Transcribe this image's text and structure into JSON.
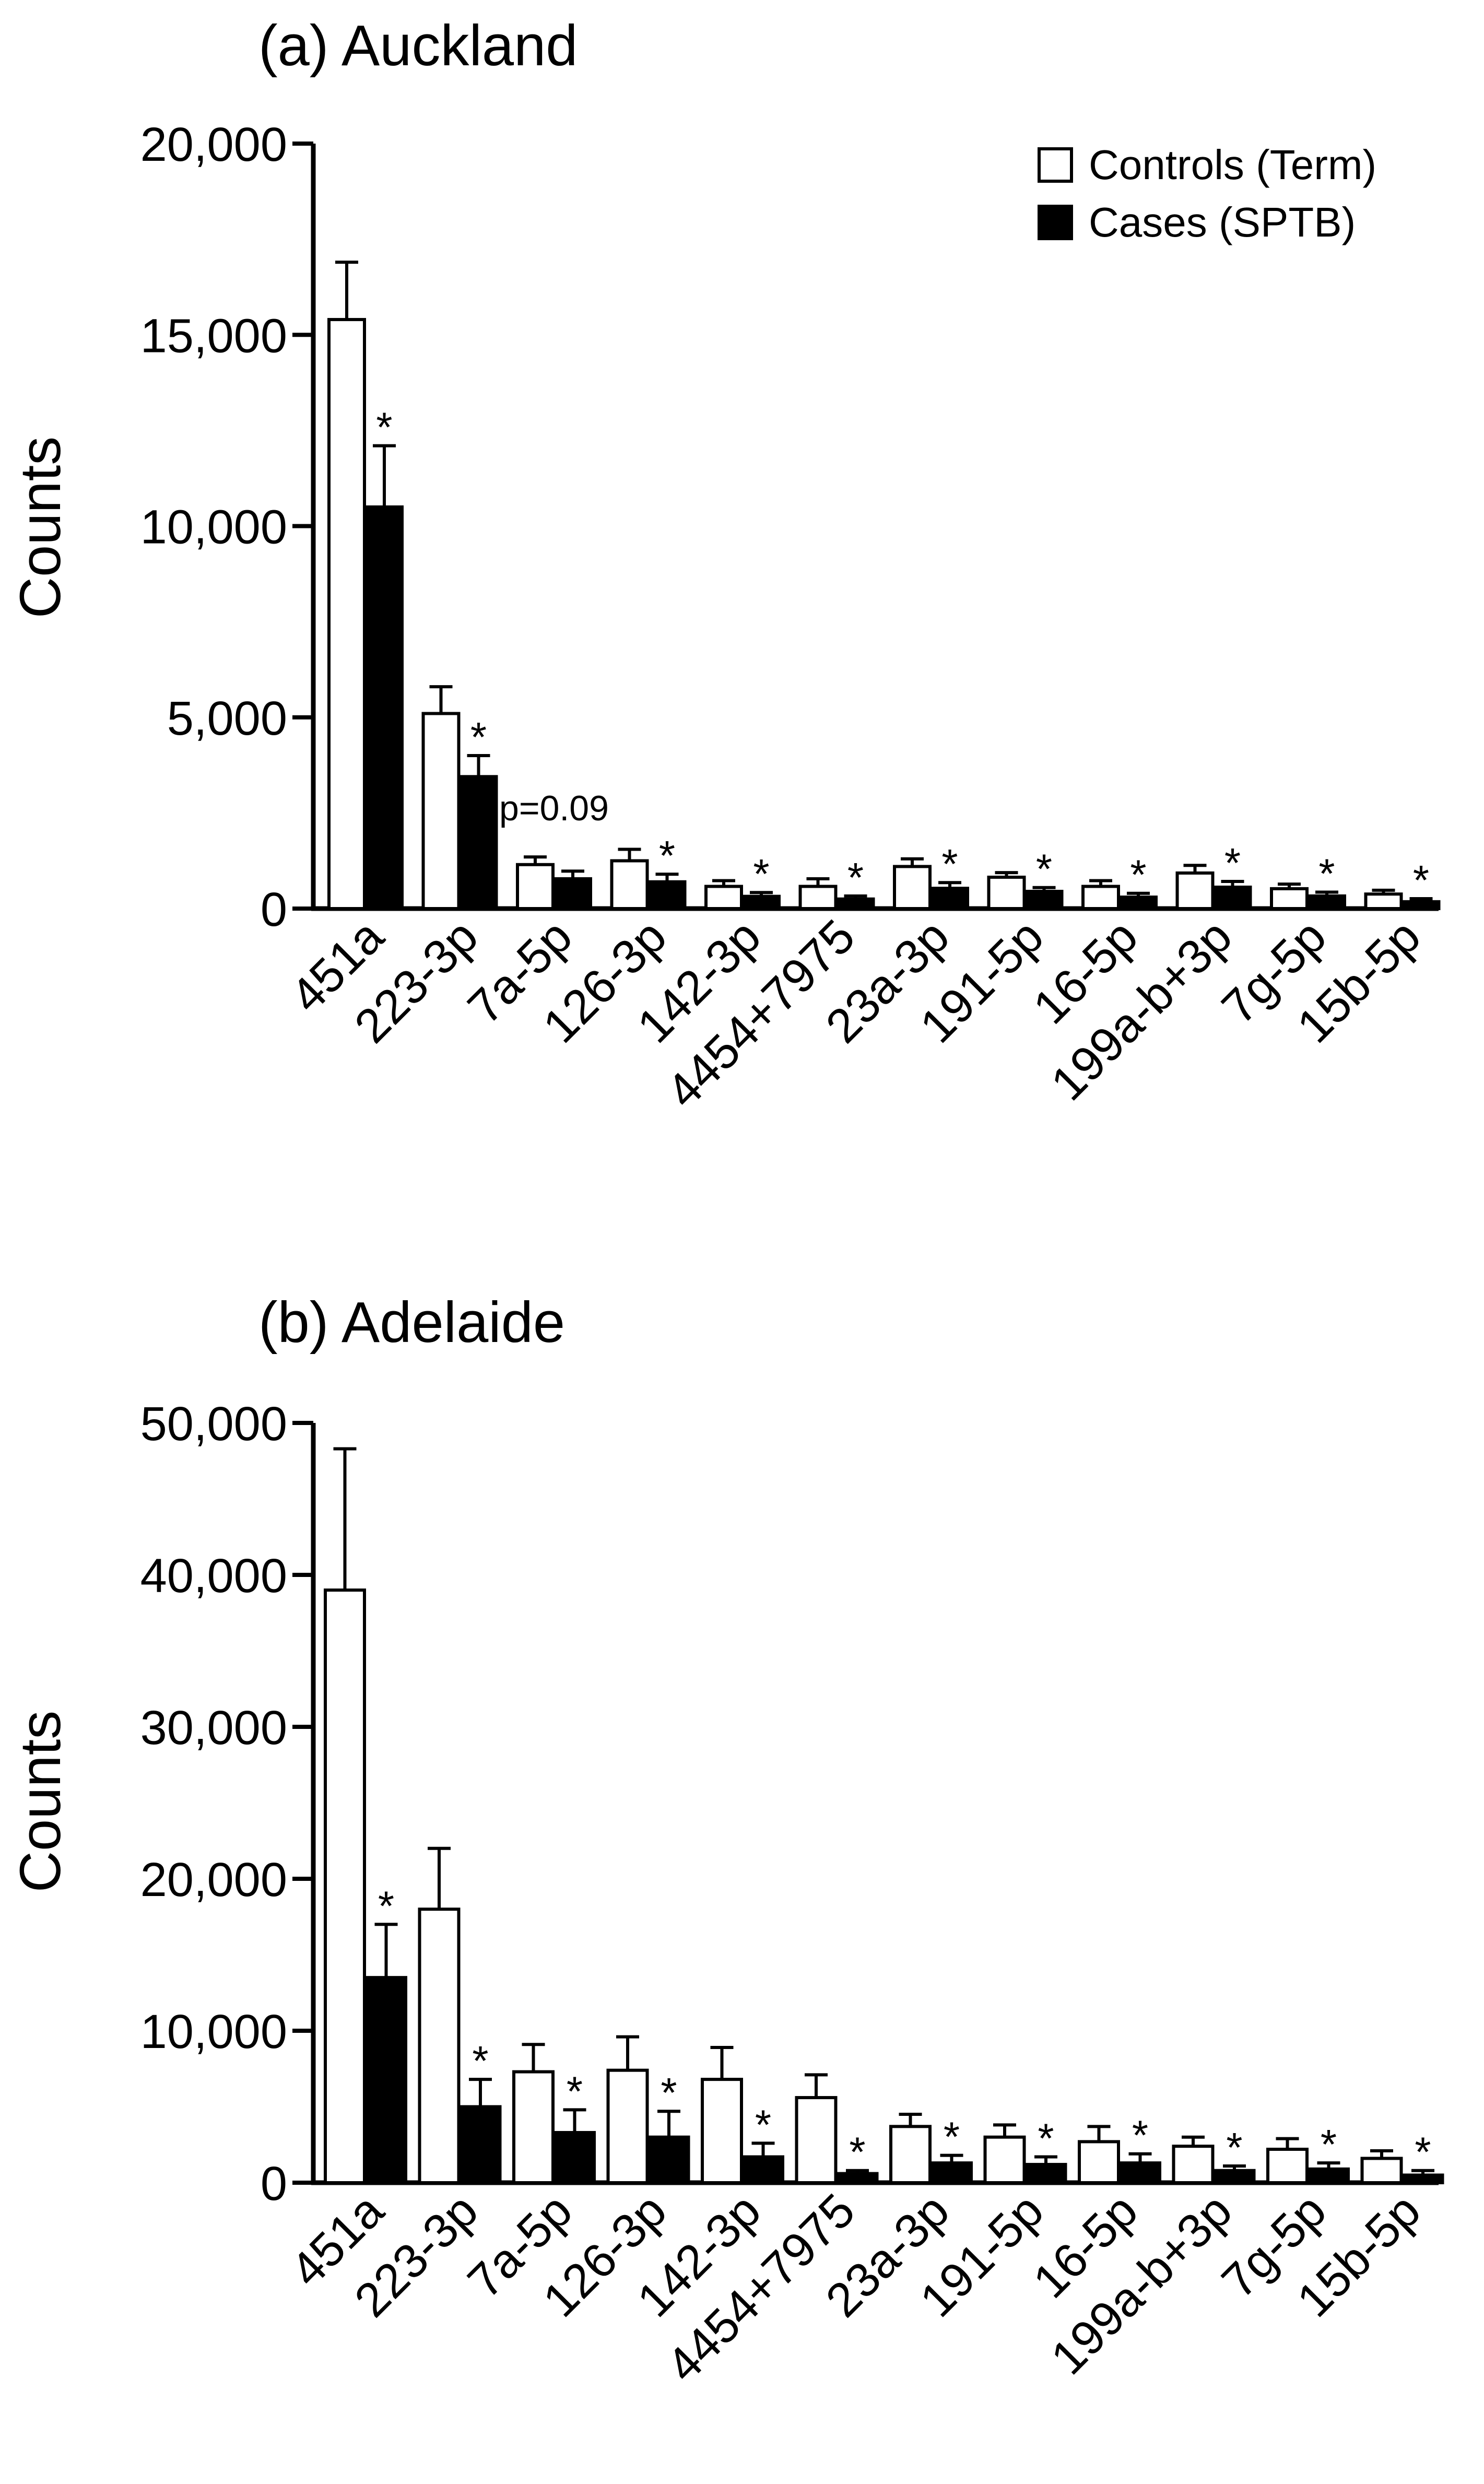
{
  "chart_data": [
    {
      "type": "bar",
      "title": "(a) Auckland",
      "ylabel": "Counts",
      "xlabel": "",
      "ylim": [
        0,
        20000
      ],
      "yticks": [
        0,
        5000,
        10000,
        15000,
        20000
      ],
      "ytick_labels": [
        "0",
        "5,000",
        "10,000",
        "15,000",
        "20,000"
      ],
      "categories": [
        "451a",
        "223-3p",
        "7a-5p",
        "126-3p",
        "142-3p",
        "4454+7975",
        "23a-3p",
        "191-5p",
        "16-5p",
        "199a-b+3p",
        "7g-5p",
        "15b-5p"
      ],
      "series": [
        {
          "name": "Controls (Term)",
          "color": "#ffffff",
          "values": [
            15400,
            5100,
            1150,
            1250,
            580,
            580,
            1100,
            820,
            580,
            930,
            520,
            380
          ],
          "errors": [
            1500,
            700,
            200,
            300,
            150,
            200,
            200,
            120,
            150,
            200,
            120,
            100
          ]
        },
        {
          "name": "Cases (SPTB)",
          "color": "#000000",
          "values": [
            10500,
            3450,
            780,
            700,
            320,
            250,
            530,
            450,
            300,
            560,
            330,
            180
          ],
          "errors": [
            1600,
            550,
            200,
            200,
            100,
            80,
            150,
            100,
            100,
            150,
            100,
            80
          ]
        }
      ],
      "annotations": [
        "*",
        "*",
        "p=0.09",
        "*",
        "*",
        "*",
        "*",
        "*",
        "*",
        "*",
        "*",
        "*"
      ],
      "legend": "top-right"
    },
    {
      "type": "bar",
      "title": "(b) Adelaide",
      "ylabel": "Counts",
      "xlabel": "",
      "ylim": [
        0,
        50000
      ],
      "yticks": [
        0,
        10000,
        20000,
        30000,
        40000,
        50000
      ],
      "ytick_labels": [
        "0",
        "10,000",
        "20,000",
        "30,000",
        "40,000",
        "50,000"
      ],
      "categories": [
        "451a",
        "223-3p",
        "7a-5p",
        "126-3p",
        "142-3p",
        "4454+7975",
        "23a-3p",
        "191-5p",
        "16-5p",
        "199a-b+3p",
        "7g-5p",
        "15b-5p"
      ],
      "series": [
        {
          "name": "Controls (Term)",
          "color": "#ffffff",
          "values": [
            39000,
            18000,
            7300,
            7400,
            6800,
            5600,
            3700,
            3000,
            2700,
            2400,
            2200,
            1600
          ],
          "errors": [
            9300,
            4000,
            1800,
            2200,
            2100,
            1500,
            800,
            800,
            1000,
            600,
            700,
            500
          ]
        },
        {
          "name": "Cases (SPTB)",
          "color": "#000000",
          "values": [
            13500,
            5000,
            3300,
            3000,
            1700,
            600,
            1300,
            1200,
            1300,
            800,
            900,
            500
          ],
          "errors": [
            3500,
            1800,
            1500,
            1700,
            900,
            200,
            500,
            500,
            600,
            300,
            400,
            300
          ]
        }
      ],
      "annotations": [
        "*",
        "*",
        "*",
        "*",
        "*",
        "*",
        "*",
        "*",
        "*",
        "*",
        "*",
        "*"
      ],
      "legend": "none"
    }
  ]
}
